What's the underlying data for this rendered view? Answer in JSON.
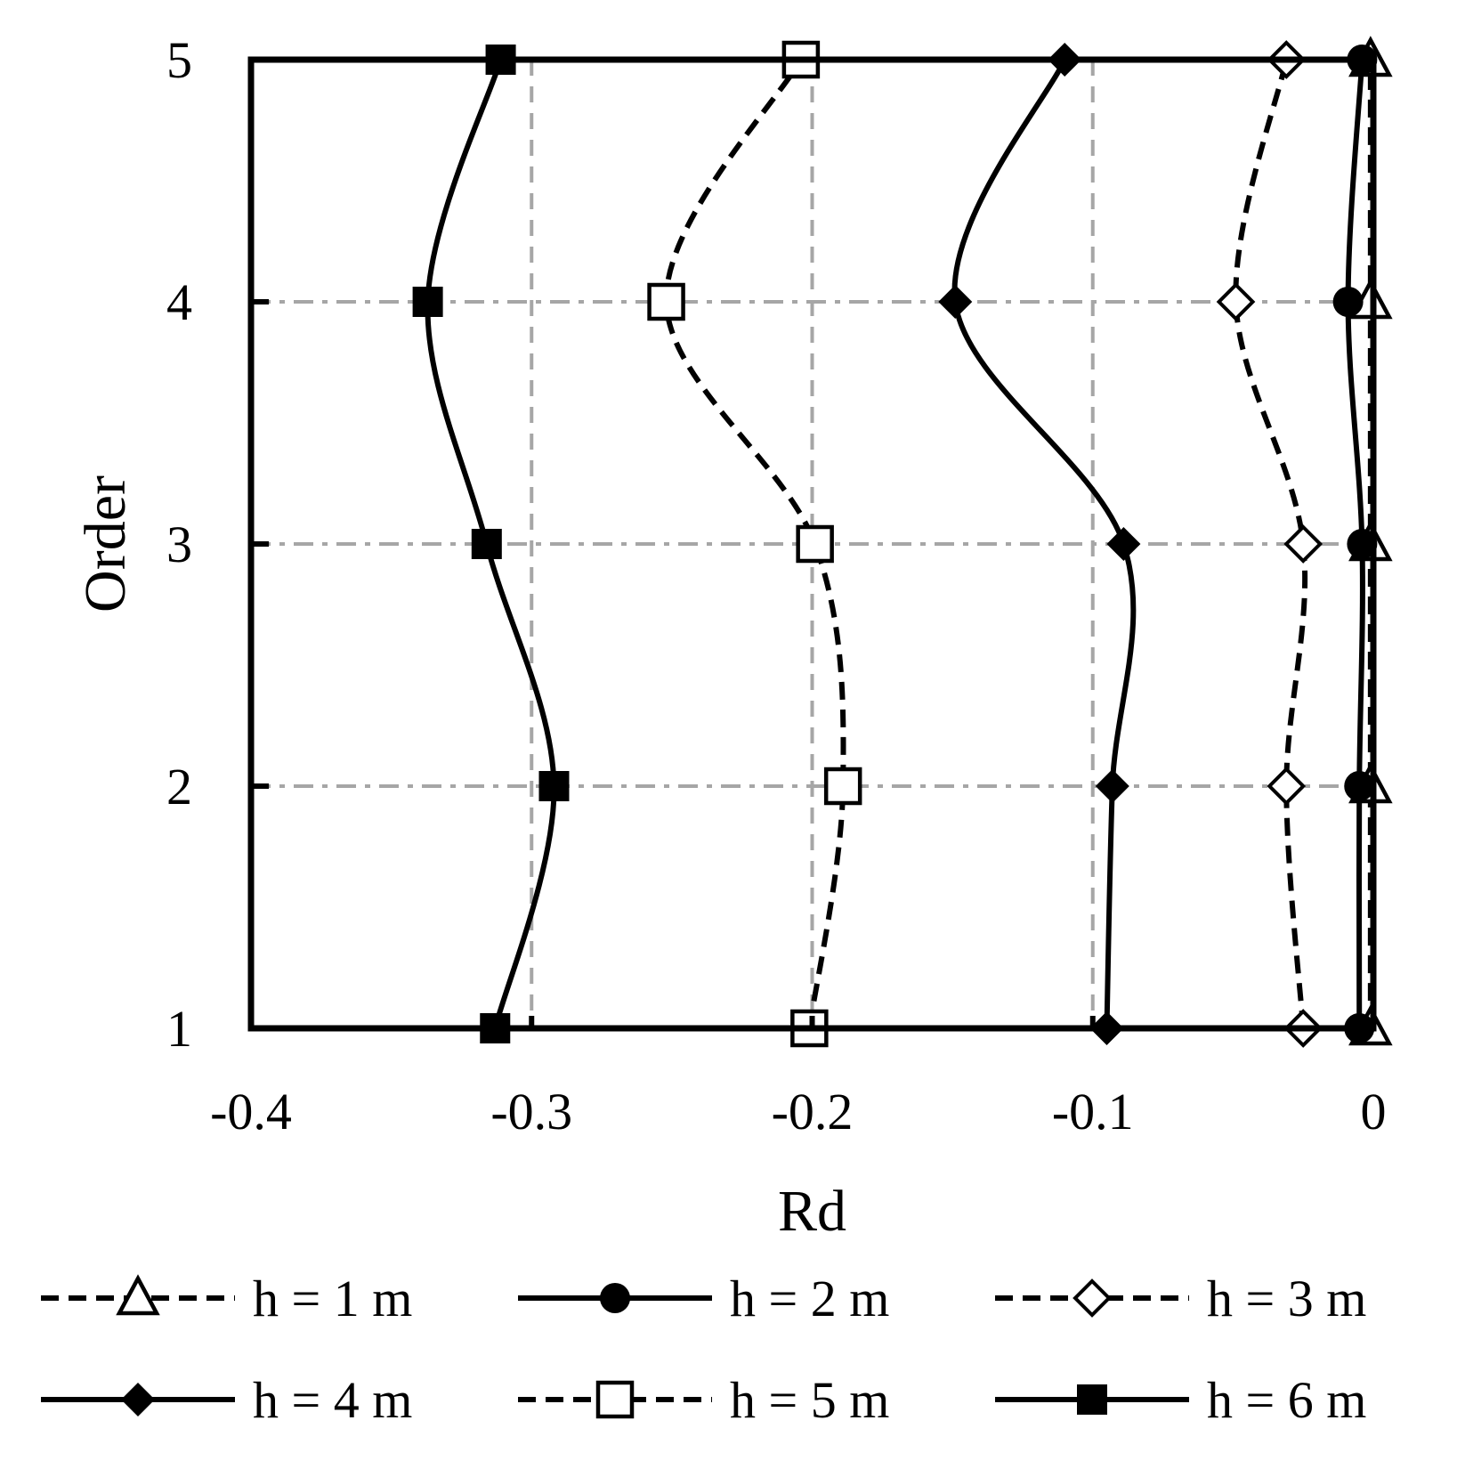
{
  "chart_data": {
    "type": "line",
    "xlabel": "Rd",
    "ylabel": "Order",
    "xlim": [
      -0.4,
      0
    ],
    "ylim": [
      1,
      5
    ],
    "xticks": [
      "-0.4",
      "-0.3",
      "-0.2",
      "-0.1",
      "0"
    ],
    "yticks": [
      "1",
      "2",
      "3",
      "4",
      "5"
    ],
    "x_grid_style": "dashed",
    "y_grid_style": "dash-dot",
    "grid_color": "#a6a6a6",
    "line_color": "#000000",
    "legend_position": "bottom",
    "series": [
      {
        "name": "h = 1 m",
        "marker": "triangle-open",
        "dash": true,
        "points": [
          [
            -0.001,
            1
          ],
          [
            -0.001,
            2
          ],
          [
            -0.001,
            3
          ],
          [
            -0.001,
            4
          ],
          [
            -0.001,
            5
          ]
        ]
      },
      {
        "name": "h = 2 m",
        "marker": "circle-filled",
        "dash": false,
        "points": [
          [
            -0.005,
            1
          ],
          [
            -0.005,
            2
          ],
          [
            -0.004,
            3
          ],
          [
            -0.009,
            4
          ],
          [
            -0.004,
            5
          ]
        ]
      },
      {
        "name": "h = 3 m",
        "marker": "diamond-open",
        "dash": true,
        "points": [
          [
            -0.025,
            1
          ],
          [
            -0.031,
            2
          ],
          [
            -0.025,
            3
          ],
          [
            -0.049,
            4
          ],
          [
            -0.031,
            5
          ]
        ]
      },
      {
        "name": "h = 4 m",
        "marker": "diamond-filled",
        "dash": false,
        "points": [
          [
            -0.095,
            1
          ],
          [
            -0.093,
            2
          ],
          [
            -0.089,
            3
          ],
          [
            -0.149,
            4
          ],
          [
            -0.11,
            5
          ]
        ]
      },
      {
        "name": "h = 5 m",
        "marker": "square-open",
        "dash": true,
        "points": [
          [
            -0.201,
            1
          ],
          [
            -0.189,
            2
          ],
          [
            -0.199,
            3
          ],
          [
            -0.252,
            4
          ],
          [
            -0.204,
            5
          ]
        ]
      },
      {
        "name": "h = 6 m",
        "marker": "square-filled",
        "dash": false,
        "points": [
          [
            -0.313,
            1
          ],
          [
            -0.292,
            2
          ],
          [
            -0.316,
            3
          ],
          [
            -0.337,
            4
          ],
          [
            -0.311,
            5
          ]
        ]
      }
    ]
  }
}
